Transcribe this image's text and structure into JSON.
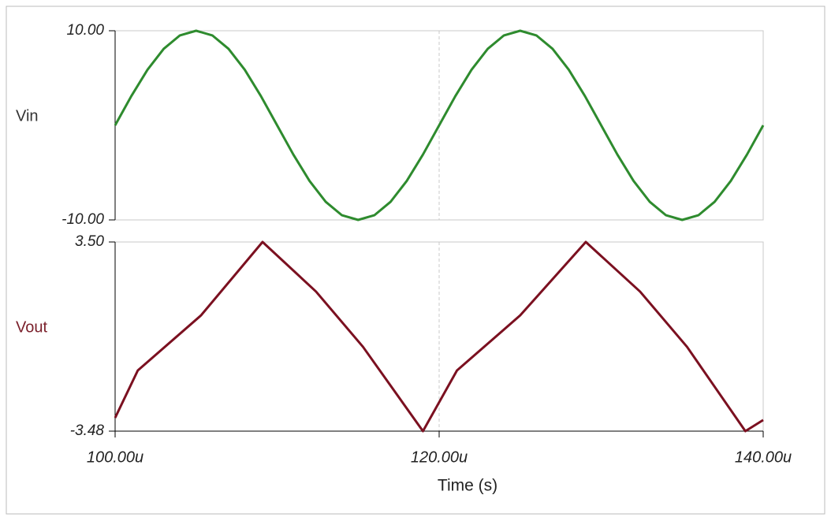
{
  "chart_data": [
    {
      "type": "line",
      "ylabel": "Vin",
      "ylabel_color": "#333333",
      "x": [
        100,
        101,
        102,
        103,
        104,
        105,
        106,
        107,
        108,
        109,
        110,
        111,
        112,
        113,
        114,
        115,
        116,
        117,
        118,
        119,
        120,
        121,
        122,
        123,
        124,
        125,
        126,
        127,
        128,
        129,
        130,
        131,
        132,
        133,
        134,
        135,
        136,
        137,
        138,
        139,
        140
      ],
      "series": [
        {
          "name": "Vin",
          "color": "#2e8b2e",
          "values": [
            0,
            3.09,
            5.88,
            8.09,
            9.51,
            10,
            9.51,
            8.09,
            5.88,
            3.09,
            0,
            -3.09,
            -5.88,
            -8.09,
            -9.51,
            -10,
            -9.51,
            -8.09,
            -5.88,
            -3.09,
            0,
            3.09,
            5.88,
            8.09,
            9.51,
            10,
            9.51,
            8.09,
            5.88,
            3.09,
            0,
            -3.09,
            -5.88,
            -8.09,
            -9.51,
            -10,
            -9.51,
            -8.09,
            -5.88,
            -3.09,
            0
          ]
        }
      ],
      "xlim": [
        100,
        140
      ],
      "ylim": [
        -10,
        10
      ],
      "yticks": [
        {
          "value": -10,
          "label": "-10.00"
        },
        {
          "value": 10,
          "label": "10.00"
        }
      ]
    },
    {
      "type": "line",
      "ylabel": "Vout",
      "ylabel_color": "#7a1f2a",
      "xlabel": "Time (s)",
      "x": [
        100,
        101.4,
        105.3,
        109.1,
        112.4,
        115.3,
        119,
        121.1,
        125,
        129.05,
        132.4,
        135.3,
        138.9,
        140
      ],
      "series": [
        {
          "name": "Vout",
          "color": "#7b1020",
          "values": [
            -2.99,
            -1.24,
            0.79,
            3.5,
            1.67,
            -0.37,
            -3.48,
            -1.24,
            0.79,
            3.5,
            1.67,
            -0.37,
            -3.48,
            -3.07
          ]
        }
      ],
      "xlim": [
        100,
        140
      ],
      "xticks": [
        {
          "value": 100,
          "label": "100.00u"
        },
        {
          "value": 120,
          "label": "120.00u"
        },
        {
          "value": 140,
          "label": "140.00u"
        }
      ],
      "ylim": [
        -3.48,
        3.5
      ],
      "yticks": [
        {
          "value": -3.48,
          "label": "-3.48"
        },
        {
          "value": 3.5,
          "label": "3.50"
        }
      ]
    }
  ]
}
